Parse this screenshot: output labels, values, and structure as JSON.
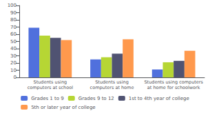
{
  "chart_data": {
    "type": "bar",
    "categories": [
      "Students using\ncomputers at school",
      "Students using\ncomputers at home",
      "Students using computers\nat home for schoolwork"
    ],
    "series": [
      {
        "name": "Grades 1 to 9",
        "values": [
          69,
          25,
          11
        ]
      },
      {
        "name": "Grades 9 to 12",
        "values": [
          58,
          28,
          21
        ]
      },
      {
        "name": "1st to 4th year of college",
        "values": [
          55,
          33,
          23
        ]
      },
      {
        "name": "5th or later year of college",
        "values": [
          52,
          53,
          37
        ]
      }
    ],
    "ylim": [
      0,
      100
    ],
    "yticks": [
      0,
      10,
      20,
      30,
      40,
      50,
      60,
      70,
      80,
      90,
      100
    ],
    "grid": false,
    "legend": "bottom"
  }
}
